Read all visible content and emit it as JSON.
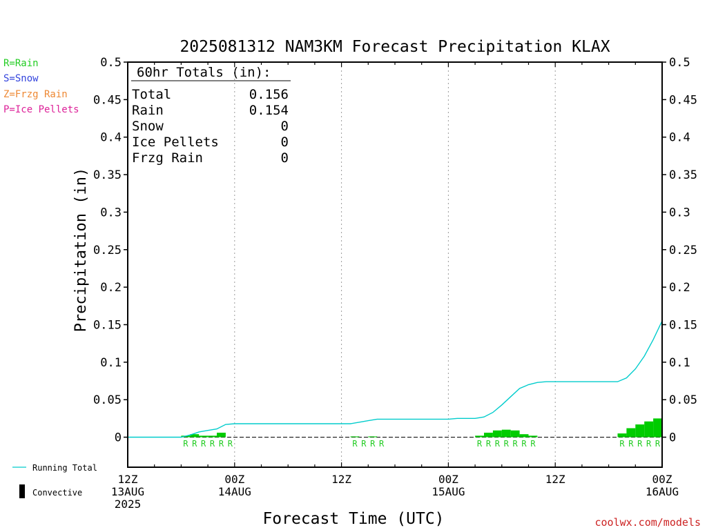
{
  "chart_data": {
    "type": "bar",
    "title": "2025081312 NAM3KM Forecast Precipitation KLAX",
    "xlabel": "Forecast Time (UTC)",
    "ylabel": "Precipitation (in)",
    "ylim": [
      -0.04,
      0.5
    ],
    "y_ticks": [
      "0",
      "0.05",
      "0.1",
      "0.15",
      "0.2",
      "0.25",
      "0.3",
      "0.35",
      "0.4",
      "0.45",
      "0.5"
    ],
    "y_tick_values": [
      0,
      0.05,
      0.1,
      0.15,
      0.2,
      0.25,
      0.3,
      0.35,
      0.4,
      0.45,
      0.5
    ],
    "xlim": [
      0,
      60
    ],
    "x_ticks": [
      {
        "hour": 0,
        "line1": "12Z",
        "line2": "13AUG",
        "line3": "2025"
      },
      {
        "hour": 12,
        "line1": "00Z",
        "line2": "14AUG",
        "line3": ""
      },
      {
        "hour": 24,
        "line1": "12Z",
        "line2": "",
        "line3": ""
      },
      {
        "hour": 36,
        "line1": "00Z",
        "line2": "15AUG",
        "line3": ""
      },
      {
        "hour": 48,
        "line1": "12Z",
        "line2": "",
        "line3": ""
      },
      {
        "hour": 60,
        "line1": "00Z",
        "line2": "16AUG",
        "line3": ""
      }
    ],
    "grid_x": true,
    "legend_placement": "left",
    "ptype_legend": [
      {
        "label": "R=Rain",
        "color": "#22cc22"
      },
      {
        "label": "S=Snow",
        "color": "#3344dd"
      },
      {
        "label": "Z=Frzg Rain",
        "color": "#ee8833"
      },
      {
        "label": "P=Ice Pellets",
        "color": "#dd2299"
      }
    ],
    "series_legend": [
      {
        "label": "Running Total",
        "color": "#00cccc"
      },
      {
        "label": "Convective",
        "color": "#000000"
      }
    ],
    "totals": {
      "header": "60hr Totals (in):",
      "rows": [
        {
          "label": "Total",
          "value": "0.156"
        },
        {
          "label": "Rain",
          "value": "0.154"
        },
        {
          "label": "Snow",
          "value": "0"
        },
        {
          "label": "Ice Pellets",
          "value": "0"
        },
        {
          "label": "Frzg Rain",
          "value": "0"
        }
      ]
    },
    "bar_color": "#00cc00",
    "line_color": "#00cccc",
    "bars": [
      {
        "hour": 7,
        "value": 0.002
      },
      {
        "hour": 8,
        "value": 0.004
      },
      {
        "hour": 9,
        "value": 0.002
      },
      {
        "hour": 10,
        "value": 0.002
      },
      {
        "hour": 11,
        "value": 0.006
      },
      {
        "hour": 26,
        "value": 0.001
      },
      {
        "hour": 28,
        "value": 0.001
      },
      {
        "hour": 40,
        "value": 0.002
      },
      {
        "hour": 41,
        "value": 0.006
      },
      {
        "hour": 42,
        "value": 0.009
      },
      {
        "hour": 43,
        "value": 0.01
      },
      {
        "hour": 44,
        "value": 0.009
      },
      {
        "hour": 45,
        "value": 0.004
      },
      {
        "hour": 46,
        "value": 0.002
      },
      {
        "hour": 56,
        "value": 0.005
      },
      {
        "hour": 57,
        "value": 0.012
      },
      {
        "hour": 58,
        "value": 0.017
      },
      {
        "hour": 59,
        "value": 0.021
      },
      {
        "hour": 60,
        "value": 0.025
      }
    ],
    "running_total": [
      {
        "hour": 0,
        "value": 0
      },
      {
        "hour": 5,
        "value": 0
      },
      {
        "hour": 6,
        "value": 0
      },
      {
        "hour": 7,
        "value": 0.003
      },
      {
        "hour": 8,
        "value": 0.007
      },
      {
        "hour": 9,
        "value": 0.009
      },
      {
        "hour": 10,
        "value": 0.011
      },
      {
        "hour": 11,
        "value": 0.017
      },
      {
        "hour": 12,
        "value": 0.018
      },
      {
        "hour": 25,
        "value": 0.018
      },
      {
        "hour": 26,
        "value": 0.02
      },
      {
        "hour": 27,
        "value": 0.022
      },
      {
        "hour": 28,
        "value": 0.024
      },
      {
        "hour": 36,
        "value": 0.024
      },
      {
        "hour": 37,
        "value": 0.025
      },
      {
        "hour": 39,
        "value": 0.025
      },
      {
        "hour": 40,
        "value": 0.027
      },
      {
        "hour": 41,
        "value": 0.033
      },
      {
        "hour": 42,
        "value": 0.043
      },
      {
        "hour": 43,
        "value": 0.054
      },
      {
        "hour": 44,
        "value": 0.065
      },
      {
        "hour": 45,
        "value": 0.07
      },
      {
        "hour": 46,
        "value": 0.073
      },
      {
        "hour": 47,
        "value": 0.074
      },
      {
        "hour": 55,
        "value": 0.074
      },
      {
        "hour": 56,
        "value": 0.079
      },
      {
        "hour": 57,
        "value": 0.091
      },
      {
        "hour": 58,
        "value": 0.108
      },
      {
        "hour": 59,
        "value": 0.13
      },
      {
        "hour": 60,
        "value": 0.155
      }
    ],
    "ptype_marks": [
      {
        "hour": 7,
        "letter": "R"
      },
      {
        "hour": 8,
        "letter": "R"
      },
      {
        "hour": 9,
        "letter": "R"
      },
      {
        "hour": 10,
        "letter": "R"
      },
      {
        "hour": 11,
        "letter": "R"
      },
      {
        "hour": 12,
        "letter": "R"
      },
      {
        "hour": 26,
        "letter": "R"
      },
      {
        "hour": 27,
        "letter": "R"
      },
      {
        "hour": 28,
        "letter": "R"
      },
      {
        "hour": 29,
        "letter": "R"
      },
      {
        "hour": 40,
        "letter": "R"
      },
      {
        "hour": 41,
        "letter": "R"
      },
      {
        "hour": 42,
        "letter": "R"
      },
      {
        "hour": 43,
        "letter": "R"
      },
      {
        "hour": 44,
        "letter": "R"
      },
      {
        "hour": 45,
        "letter": "R"
      },
      {
        "hour": 46,
        "letter": "R"
      },
      {
        "hour": 56,
        "letter": "R"
      },
      {
        "hour": 57,
        "letter": "R"
      },
      {
        "hour": 58,
        "letter": "R"
      },
      {
        "hour": 59,
        "letter": "R"
      },
      {
        "hour": 60,
        "letter": "R"
      }
    ]
  },
  "footer_text": "coolwx.com/models",
  "footer_color": "#cc2222"
}
